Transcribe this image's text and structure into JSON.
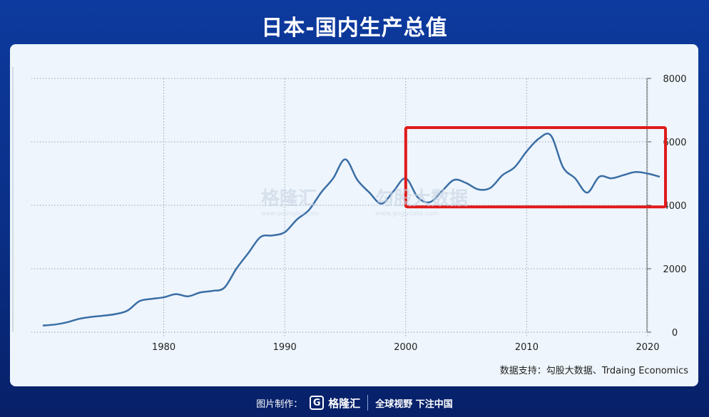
{
  "header": {
    "title": "日本-国内生产总值"
  },
  "source": "数据支持：勾股大数据、Trdaing Economics",
  "watermarks": {
    "left": "格隆汇",
    "left_url": "www.gelonghui.com",
    "right": "勾股大数据",
    "right_url": "www.gogudata.com"
  },
  "footer": {
    "made_by": "图片制作：",
    "brand": "格隆汇",
    "logo_letter": "G",
    "slogan": "全球视野 下注中国"
  },
  "colors": {
    "line": "#3a6ea5",
    "highlight": "#e01b1b",
    "grid": "#9aa6b2"
  },
  "chart_data": {
    "type": "line",
    "title": "",
    "xlabel": "",
    "ylabel": "",
    "xlim": [
      1970,
      2021
    ],
    "ylim": [
      0,
      8000
    ],
    "x_ticks": [
      1980,
      1990,
      2000,
      2010,
      2020
    ],
    "y_ticks": [
      0,
      2000,
      4000,
      6000,
      8000
    ],
    "y_axis_position": "right",
    "grid": true,
    "series": [
      {
        "x": [
          1970,
          1971,
          1972,
          1973,
          1974,
          1975,
          1976,
          1977,
          1978,
          1979,
          1980,
          1981,
          1982,
          1983,
          1984,
          1985,
          1986,
          1987,
          1988,
          1989,
          1990,
          1991,
          1992,
          1993,
          1994,
          1995,
          1996,
          1997,
          1998,
          1999,
          2000,
          2001,
          2002,
          2003,
          2004,
          2005,
          2006,
          2007,
          2008,
          2009,
          2010,
          2011,
          2012,
          2013,
          2014,
          2015,
          2016,
          2017,
          2018,
          2019,
          2020,
          2021
        ],
        "values": [
          210,
          240,
          310,
          420,
          480,
          520,
          570,
          680,
          980,
          1050,
          1100,
          1200,
          1130,
          1250,
          1300,
          1400,
          2000,
          2500,
          3000,
          3050,
          3150,
          3550,
          3850,
          4400,
          4850,
          5450,
          4800,
          4400,
          4050,
          4450,
          4850,
          4250,
          4100,
          4450,
          4800,
          4700,
          4500,
          4550,
          4950,
          5200,
          5700,
          6100,
          6200,
          5200,
          4850,
          4400,
          4900,
          4850,
          4950,
          5050,
          5000,
          4900
        ]
      }
    ],
    "highlight_box": {
      "x_range": [
        2000,
        2021
      ],
      "y_range": [
        3950,
        6450
      ]
    }
  }
}
